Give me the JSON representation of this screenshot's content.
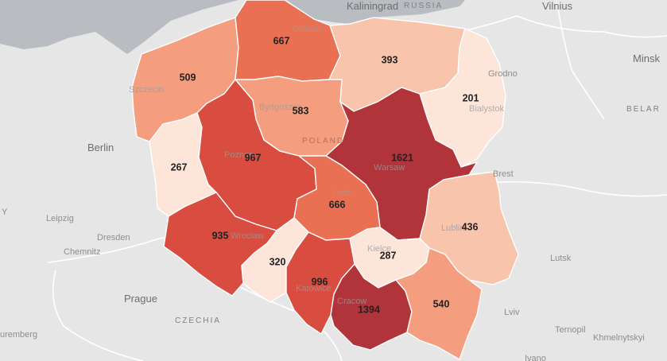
{
  "colors": {
    "scale": [
      "#fde5d9",
      "#f9c4ac",
      "#f49e7f",
      "#ea7054",
      "#d94c40",
      "#b1343b"
    ],
    "land": "#e6e6e6",
    "sea": "#b9bcc1"
  },
  "places": {
    "kaliningrad": "Kaliningrad",
    "russia": "RUSSIA",
    "vilnius": "Vilnius",
    "minsk": "Minsk",
    "belarus": "BELAR",
    "berlin": "Berlin",
    "leipzig": "Leipzig",
    "dresden": "Dresden",
    "chemnitz": "Chemnitz",
    "prague": "Prague",
    "czechia": "CZECHIA",
    "nuremberg": "uremberg",
    "lutsk": "Lutsk",
    "lviv": "Lviv",
    "ternopil": "Ternopil",
    "khmelnytskyi": "Khmelnytskyi",
    "ivano": "Ivano",
    "brest": "Brest",
    "grodno": "Grodno",
    "poland": "POLAND",
    "y": "Y"
  },
  "city_labels": {
    "gdansk": "Gdansk",
    "szczecin": "Szczecin",
    "bydgoszcz": "Bydgoszcz",
    "poznan": "Poznan",
    "warsaw": "Warsaw",
    "bialystok": "Bialystok",
    "lodz": "Lodz",
    "lublin": "Lublin",
    "wroclaw": "Wroclaw",
    "kielce": "Kielce",
    "katowice": "Katowice",
    "cracow": "Cracow"
  },
  "regions": [
    {
      "id": "pomorskie",
      "value": "667",
      "level": 3
    },
    {
      "id": "warminsko-mazurskie",
      "value": "393",
      "level": 1
    },
    {
      "id": "zachodniopomorskie",
      "value": "509",
      "level": 2
    },
    {
      "id": "kujawsko-pomorskie",
      "value": "583",
      "level": 2
    },
    {
      "id": "podlaskie",
      "value": "201",
      "level": 0
    },
    {
      "id": "lubuskie",
      "value": "267",
      "level": 0
    },
    {
      "id": "wielkopolskie",
      "value": "967",
      "level": 4
    },
    {
      "id": "mazowieckie",
      "value": "1621",
      "level": 5
    },
    {
      "id": "lodzkie",
      "value": "666",
      "level": 3
    },
    {
      "id": "lubelskie",
      "value": "436",
      "level": 1
    },
    {
      "id": "dolnoslaskie",
      "value": "935",
      "level": 4
    },
    {
      "id": "opolskie",
      "value": "320",
      "level": 0
    },
    {
      "id": "swietokrzyskie",
      "value": "287",
      "level": 0
    },
    {
      "id": "slaskie",
      "value": "996",
      "level": 4
    },
    {
      "id": "malopolskie",
      "value": "1394",
      "level": 5
    },
    {
      "id": "podkarpackie",
      "value": "540",
      "level": 2
    }
  ]
}
